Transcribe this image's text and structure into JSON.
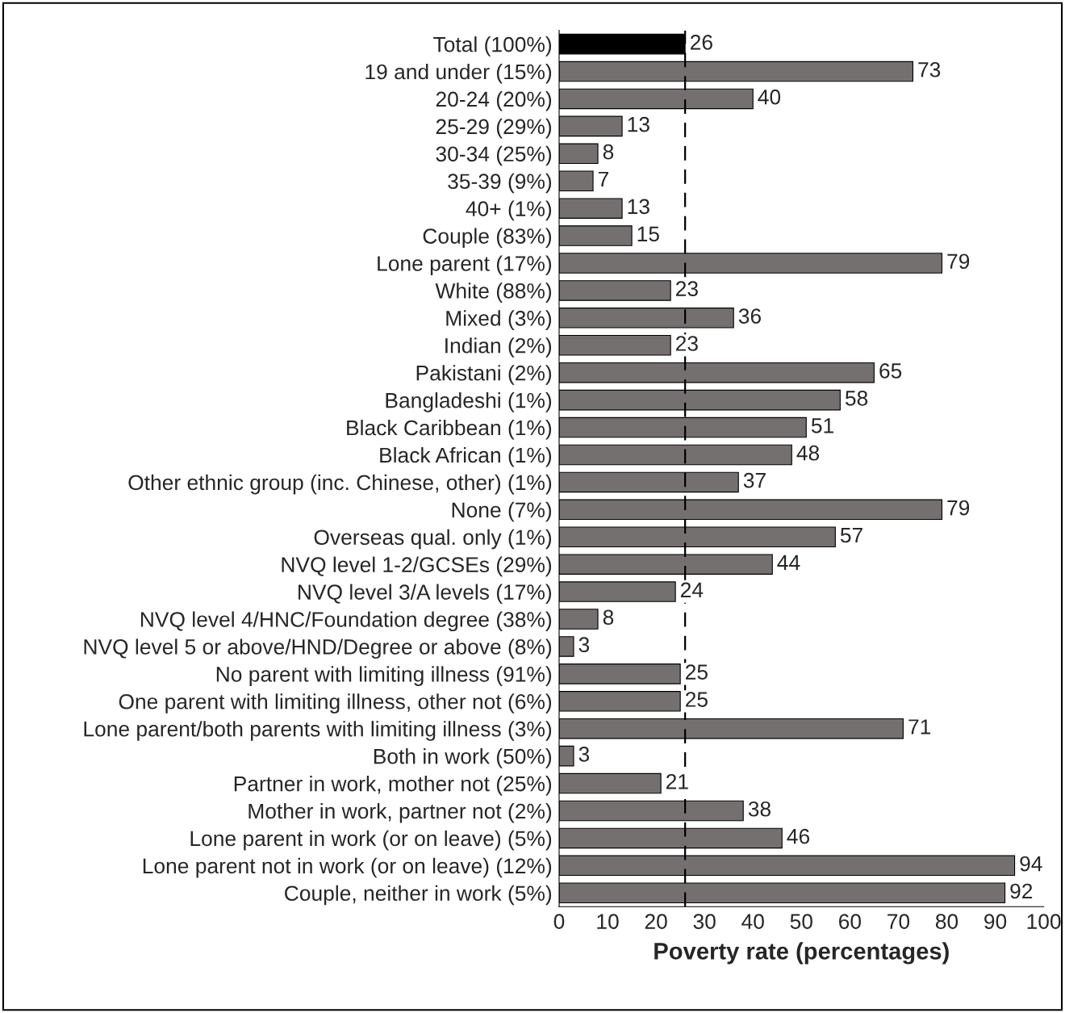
{
  "chart_data": {
    "type": "bar",
    "orientation": "horizontal",
    "xlabel": "Poverty rate (percentages)",
    "categories": [
      "Total (100%)",
      "19 and under (15%)",
      "20-24 (20%)",
      "25-29 (29%)",
      "30-34 (25%)",
      "35-39 (9%)",
      "40+ (1%)",
      "Couple (83%)",
      "Lone parent (17%)",
      "White (88%)",
      "Mixed (3%)",
      "Indian (2%)",
      "Pakistani (2%)",
      "Bangladeshi (1%)",
      "Black Caribbean (1%)",
      "Black African (1%)",
      "Other ethnic group (inc. Chinese, other) (1%)",
      "None (7%)",
      "Overseas qual. only (1%)",
      "NVQ level 1-2/GCSEs (29%)",
      "NVQ level 3/A levels (17%)",
      "NVQ level 4/HNC/Foundation degree (38%)",
      "NVQ level 5 or above/HND/Degree or above (8%)",
      "No parent with limiting illness (91%)",
      "One parent with limiting illness, other not (6%)",
      "Lone parent/both parents with limiting illness (3%)",
      "Both in work (50%)",
      "Partner in work, mother not (25%)",
      "Mother in work, partner not (2%)",
      "Lone parent in work (or on leave) (5%)",
      "Lone parent not in work (or on leave) (12%)",
      "Couple, neither in work (5%)"
    ],
    "values": [
      26,
      73,
      40,
      13,
      8,
      7,
      13,
      15,
      79,
      23,
      36,
      23,
      65,
      58,
      51,
      48,
      37,
      79,
      57,
      44,
      24,
      8,
      3,
      25,
      25,
      71,
      3,
      21,
      38,
      46,
      94,
      92
    ],
    "colors": [
      "#000000",
      "#757070",
      "#757070",
      "#757070",
      "#757070",
      "#757070",
      "#757070",
      "#757070",
      "#757070",
      "#757070",
      "#757070",
      "#757070",
      "#757070",
      "#757070",
      "#757070",
      "#757070",
      "#757070",
      "#757070",
      "#757070",
      "#757070",
      "#757070",
      "#757070",
      "#757070",
      "#757070",
      "#757070",
      "#757070",
      "#757070",
      "#757070",
      "#757070",
      "#757070",
      "#757070",
      "#757070"
    ],
    "data_labels": true,
    "xlim": [
      0,
      100
    ],
    "xticks": [
      0,
      10,
      20,
      30,
      40,
      50,
      60,
      70,
      80,
      90,
      100
    ],
    "ref_lines": [
      {
        "axis": "x",
        "value": 26,
        "color": "#000000",
        "line_style": "dashed"
      }
    ],
    "grid": false,
    "legend": false
  }
}
